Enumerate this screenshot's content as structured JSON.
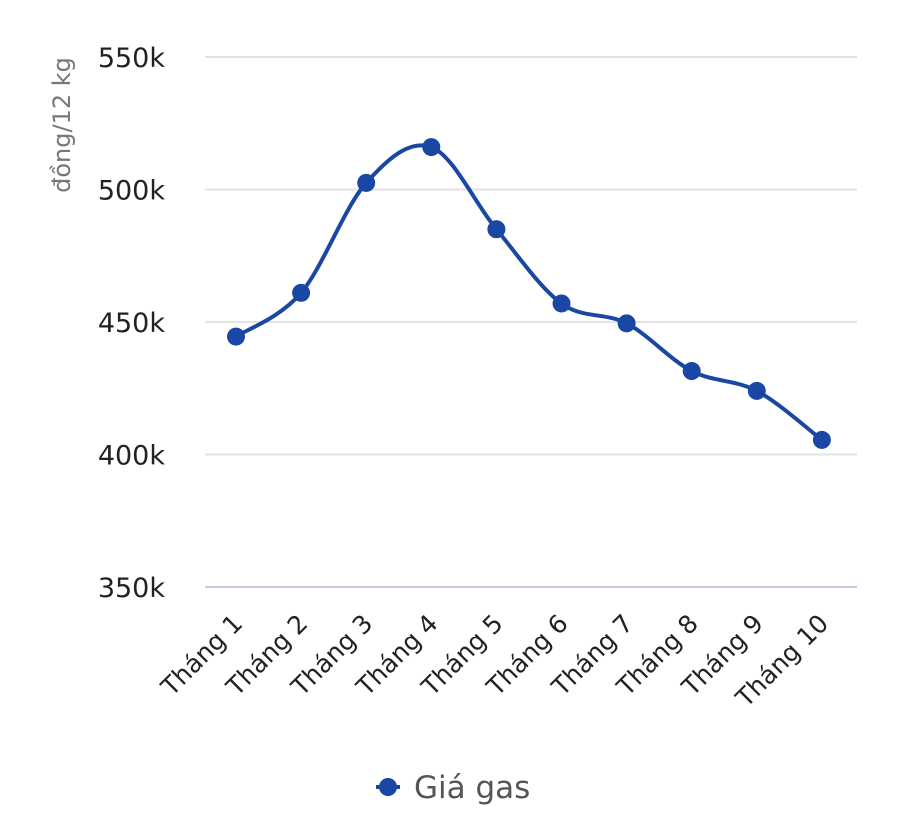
{
  "chart_data": {
    "type": "line",
    "title": "",
    "xlabel": "",
    "ylabel": "đồng/12 kg",
    "categories": [
      "Tháng 1",
      "Tháng 2",
      "Tháng 3",
      "Tháng 4",
      "Tháng 5",
      "Tháng 6",
      "Tháng 7",
      "Tháng 8",
      "Tháng 9",
      "Tháng 10"
    ],
    "series": [
      {
        "name": "Giá gas",
        "values": [
          444500,
          461000,
          502500,
          516000,
          485000,
          457000,
          449500,
          431500,
          424000,
          405500
        ],
        "color": "#1a47a3"
      }
    ],
    "ylim": [
      350000,
      550000
    ],
    "yticks": [
      350000,
      400000,
      450000,
      500000,
      550000
    ],
    "ytick_labels": [
      "350k",
      "400k",
      "450k",
      "500k",
      "550k"
    ],
    "grid": true,
    "smooth": true,
    "legend_position": "bottom"
  }
}
